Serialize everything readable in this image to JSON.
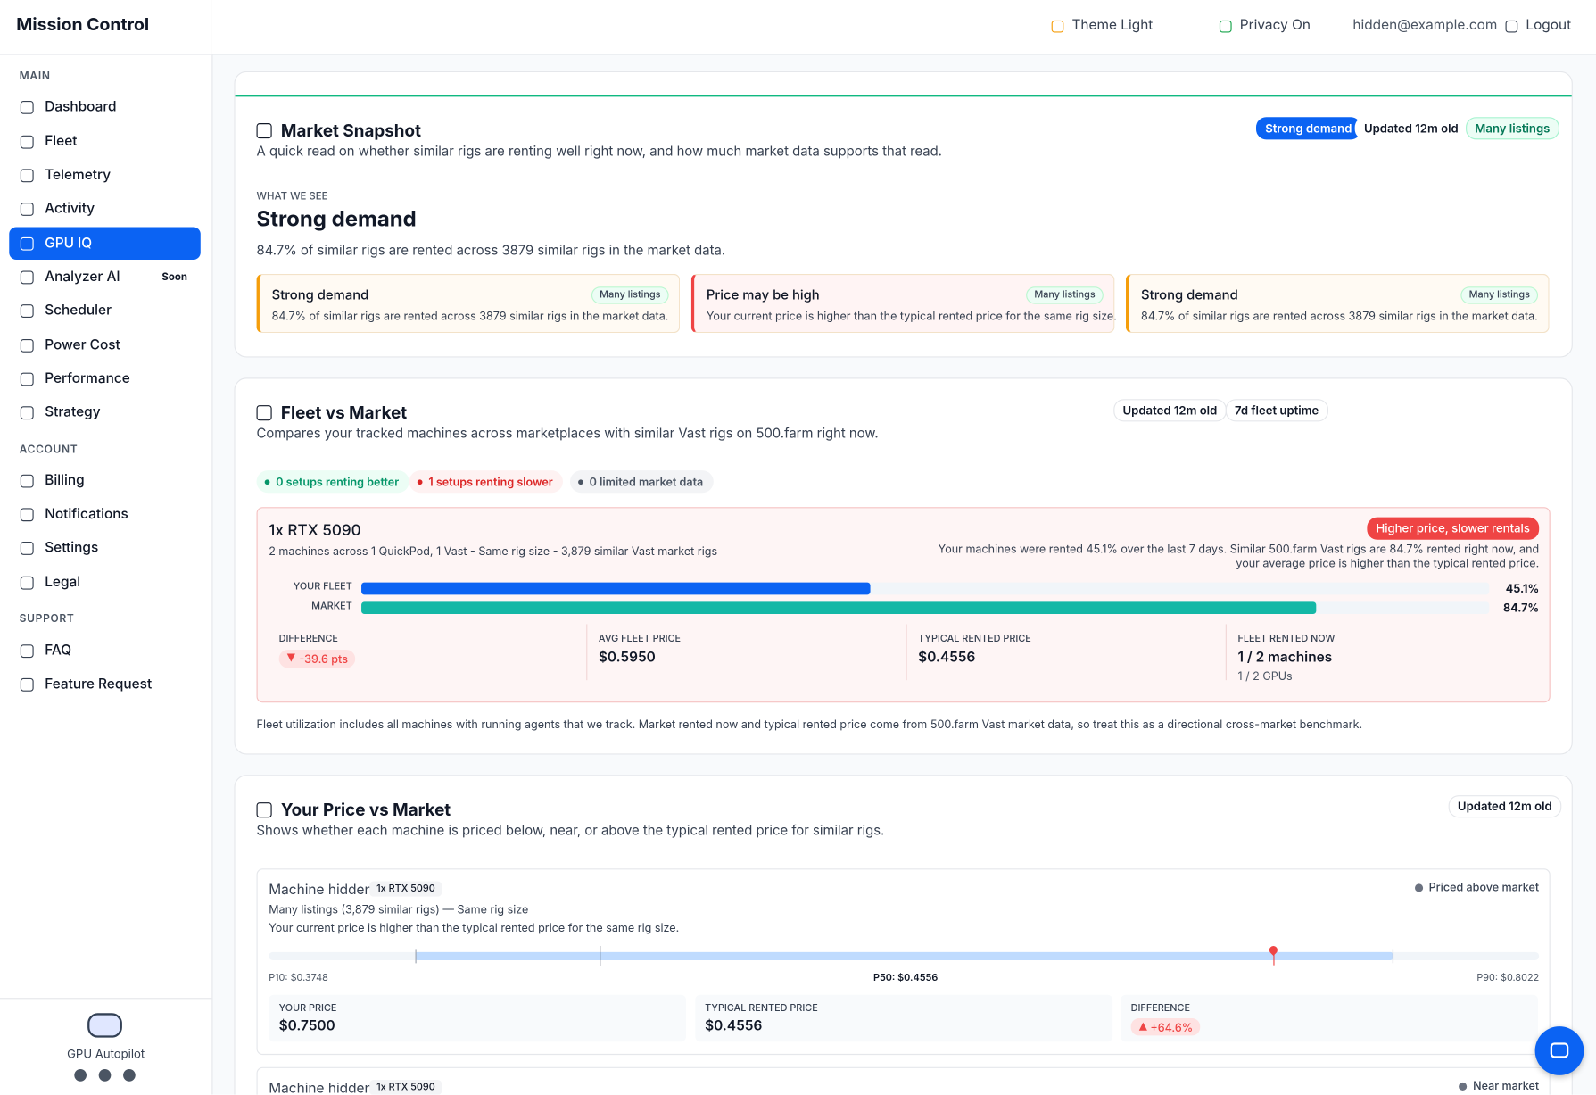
{
  "sidebar": {
    "brand": "Mission Control",
    "sections": [
      {
        "title": "MAIN",
        "items": [
          "Dashboard",
          "Fleet",
          "Telemetry",
          "Activity",
          "GPU IQ",
          "Analyzer AI",
          "Scheduler",
          "Power Cost",
          "Performance",
          "Strategy"
        ]
      },
      {
        "title": "ACCOUNT",
        "items": [
          "Billing",
          "Notifications",
          "Settings",
          "Legal"
        ]
      },
      {
        "title": "SUPPORT",
        "items": [
          "FAQ",
          "Feature Request"
        ]
      }
    ],
    "soon": "Soon",
    "footer": "GPU Autopilot"
  },
  "topbar": {
    "theme": "Theme Light",
    "privacy": "Privacy On",
    "email": "hidden@example.com",
    "logout": "Logout"
  },
  "snapshot": {
    "title": "Market Snapshot",
    "subtitle": "A quick read on whether similar rigs are renting well right now, and how much market data supports that read.",
    "badges": [
      "Strong demand",
      "Updated 12m old",
      "Many listings"
    ],
    "eyebrow": "WHAT WE SEE",
    "headline": "Strong demand",
    "summary": "84.7% of similar rigs are rented across 3879 similar rigs in the market data.",
    "cards": [
      {
        "title": "Strong demand",
        "badge": "Many listings",
        "text": "84.7% of similar rigs are rented across 3879 similar rigs in the market data."
      },
      {
        "title": "Price may be high",
        "badge": "Many listings",
        "text": "Your current price is higher than the typical rented price for the same rig size."
      },
      {
        "title": "Strong demand",
        "badge": "Many listings",
        "text": "84.7% of similar rigs are rented across 3879 similar rigs in the market data."
      }
    ]
  },
  "fleet": {
    "title": "Fleet vs Market",
    "subtitle": "Compares your tracked machines across marketplaces with similar Vast rigs on 500.farm right now.",
    "badges": [
      "Updated 12m old",
      "7d fleet uptime"
    ],
    "pills": [
      "0 setups renting better",
      "1 setups renting slower",
      "0 limited market data"
    ],
    "rig": {
      "name": "1x RTX 5090",
      "meta": "2 machines across 1 QuickPod, 1 Vast - Same rig size - 3,879 similar Vast market rigs",
      "status": "Higher price, slower rentals",
      "note": [
        "Your machines were rented 45.1% over the last 7 days. Similar 500.farm Vast rigs are 84.7% rented right now, and",
        "your average price is higher than the typical rented price."
      ],
      "bars": [
        {
          "name": "YOUR FLEET",
          "value": 45.1,
          "label": "45.1%"
        },
        {
          "name": "MARKET",
          "value": 84.7,
          "label": "84.7%"
        }
      ],
      "stats": [
        {
          "label": "DIFFERENCE",
          "value": "-39.6 pts"
        },
        {
          "label": "AVG FLEET PRICE",
          "value": "$0.5950"
        },
        {
          "label": "TYPICAL RENTED PRICE",
          "value": "$0.4556"
        },
        {
          "label": "FLEET RENTED NOW",
          "value": "1 / 2 machines",
          "sub": "1 / 2 GPUs"
        }
      ]
    },
    "footnote": "Fleet utilization includes all machines with running agents that we track. Market rented now and typical rented price come from 500.farm Vast market data, so treat this as a directional cross-market benchmark."
  },
  "price": {
    "title": "Your Price vs Market",
    "subtitle": "Shows whether each machine is priced below, near, or above the typical rented price for similar rigs.",
    "badge": "Updated 12m old",
    "machines": [
      {
        "name": "Machine hidden",
        "tag": "1x RTX 5090",
        "status": "Priced above market",
        "lines": [
          "Many listings (3,879 similar rigs) — Same rig size",
          "Your current price is higher than the typical rented price for the same rig size."
        ],
        "p10": {
          "value": 0.3748,
          "label": "P10: $0.3748"
        },
        "p50": {
          "value": 0.4556,
          "label": "P50: $0.4556"
        },
        "p90": {
          "value": 0.8022,
          "label": "P90: $0.8022"
        },
        "your_price": {
          "value": 0.75,
          "label": "$0.7500"
        },
        "stats": [
          {
            "label": "YOUR PRICE"
          },
          {
            "label": "TYPICAL RENTED PRICE",
            "value": "$0.4556"
          },
          {
            "label": "DIFFERENCE",
            "value": "+64.6%"
          }
        ]
      },
      {
        "name": "Machine hidden",
        "tag": "1x RTX 5090",
        "status": "Near market"
      }
    ]
  }
}
